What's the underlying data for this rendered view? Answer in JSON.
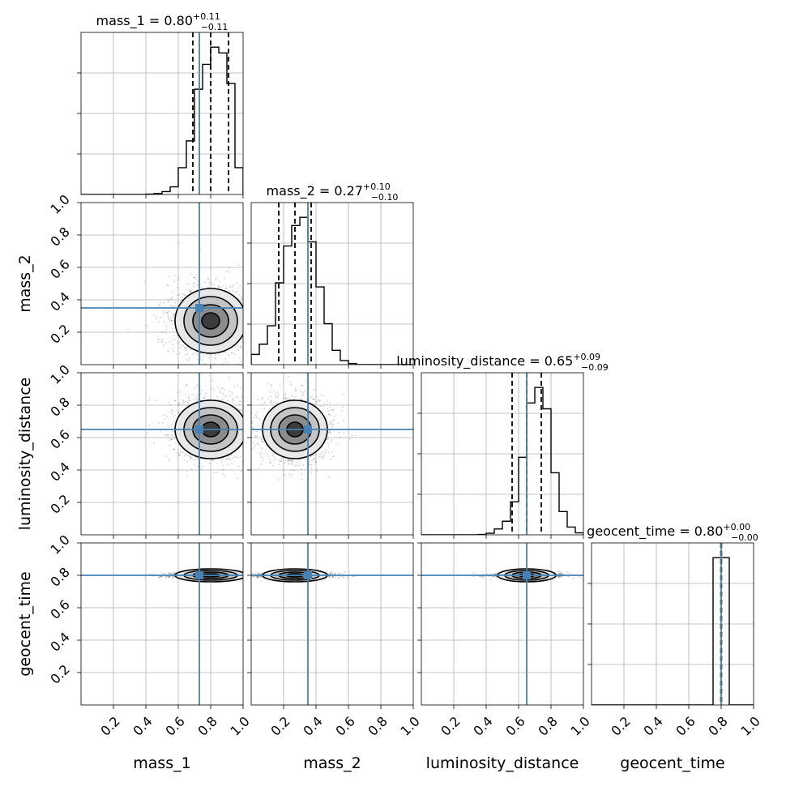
{
  "colors": {
    "truth": "#4682b4",
    "hist": "#000000",
    "contour": "#000000",
    "grid": "#b0b0b0"
  },
  "chart_data": {
    "type": "corner",
    "parameters": [
      "mass_1",
      "mass_2",
      "luminosity_distance",
      "geocent_time"
    ],
    "axis_labels": [
      "mass_1",
      "mass_2",
      "luminosity_distance",
      "geocent_time"
    ],
    "axis_range": [
      0,
      1
    ],
    "tick_values": [
      0.2,
      0.4,
      0.6,
      0.8,
      1.0
    ],
    "tick_labels": [
      "0.2",
      "0.4",
      "0.6",
      "0.8",
      "1.0"
    ],
    "grid": true,
    "truths": [
      0.73,
      0.35,
      0.65,
      0.8
    ],
    "summary": [
      {
        "param": "mass_1",
        "name": "mass_1",
        "median": "0.80",
        "plus": "+0.11",
        "minus": "−0.11",
        "quantiles": [
          0.69,
          0.8,
          0.91
        ]
      },
      {
        "param": "mass_2",
        "name": "mass_2",
        "median": "0.27",
        "plus": "+0.10",
        "minus": "−0.10",
        "quantiles": [
          0.17,
          0.27,
          0.37
        ]
      },
      {
        "param": "luminosity_distance",
        "name": "luminosity_distance",
        "median": "0.65",
        "plus": "+0.09",
        "minus": "−0.09",
        "quantiles": [
          0.56,
          0.65,
          0.74
        ]
      },
      {
        "param": "geocent_time",
        "name": "geocent_time",
        "median": "0.80",
        "plus": "+0.00",
        "minus": "−0.00",
        "quantiles": [
          0.798,
          0.8,
          0.802
        ]
      }
    ],
    "histograms": [
      {
        "param": "mass_1",
        "bin_edges": [
          0.0,
          0.05,
          0.1,
          0.15,
          0.2,
          0.25,
          0.3,
          0.35,
          0.4,
          0.45,
          0.5,
          0.55,
          0.6,
          0.65,
          0.7,
          0.75,
          0.8,
          0.85,
          0.9,
          0.95,
          1.0
        ],
        "counts": [
          0,
          0,
          0,
          0,
          0,
          0,
          0,
          0,
          0.2,
          0.5,
          1.5,
          4,
          14,
          28,
          55,
          68,
          77,
          74,
          58,
          14
        ]
      },
      {
        "param": "mass_2",
        "bin_edges": [
          0.0,
          0.05,
          0.1,
          0.15,
          0.2,
          0.25,
          0.3,
          0.35,
          0.4,
          0.45,
          0.5,
          0.55,
          0.6,
          0.65,
          0.7,
          0.75,
          0.8,
          0.85,
          0.9,
          0.95,
          1.0
        ],
        "counts": [
          5,
          10,
          19,
          40,
          58,
          68,
          72,
          60,
          38,
          20,
          7,
          2,
          0.5,
          0,
          0,
          0,
          0,
          0,
          0,
          0
        ]
      },
      {
        "param": "luminosity_distance",
        "bin_edges": [
          0.0,
          0.05,
          0.1,
          0.15,
          0.2,
          0.25,
          0.3,
          0.35,
          0.4,
          0.45,
          0.5,
          0.55,
          0.6,
          0.65,
          0.7,
          0.75,
          0.8,
          0.85,
          0.9,
          0.95,
          1.0
        ],
        "counts": [
          0,
          0,
          0,
          0,
          0,
          0,
          0,
          0.2,
          0.8,
          3,
          7,
          17,
          40,
          68,
          76,
          65,
          32,
          12,
          4,
          1
        ]
      },
      {
        "param": "geocent_time",
        "bin_edges": [
          0.0,
          0.05,
          0.1,
          0.15,
          0.2,
          0.25,
          0.3,
          0.35,
          0.4,
          0.45,
          0.5,
          0.55,
          0.6,
          0.65,
          0.7,
          0.75,
          0.8,
          0.85,
          0.9,
          0.95,
          1.0
        ],
        "counts": [
          0,
          0,
          0,
          0,
          0,
          0,
          0,
          0,
          0,
          0,
          0,
          0,
          0,
          0,
          0,
          100,
          100,
          0,
          0,
          0
        ]
      }
    ],
    "posterior_2d": [
      {
        "x": "mass_1",
        "y": "mass_2",
        "center": [
          0.8,
          0.27
        ],
        "sigma": [
          0.11,
          0.1
        ]
      },
      {
        "x": "mass_1",
        "y": "luminosity_distance",
        "center": [
          0.8,
          0.65
        ],
        "sigma": [
          0.11,
          0.09
        ]
      },
      {
        "x": "mass_2",
        "y": "luminosity_distance",
        "center": [
          0.27,
          0.65
        ],
        "sigma": [
          0.1,
          0.09
        ]
      },
      {
        "x": "mass_1",
        "y": "geocent_time",
        "center": [
          0.8,
          0.8
        ],
        "sigma": [
          0.11,
          0.004
        ]
      },
      {
        "x": "mass_2",
        "y": "geocent_time",
        "center": [
          0.27,
          0.8
        ],
        "sigma": [
          0.1,
          0.004
        ]
      },
      {
        "x": "luminosity_distance",
        "y": "geocent_time",
        "center": [
          0.65,
          0.8
        ],
        "sigma": [
          0.09,
          0.004
        ]
      }
    ]
  }
}
